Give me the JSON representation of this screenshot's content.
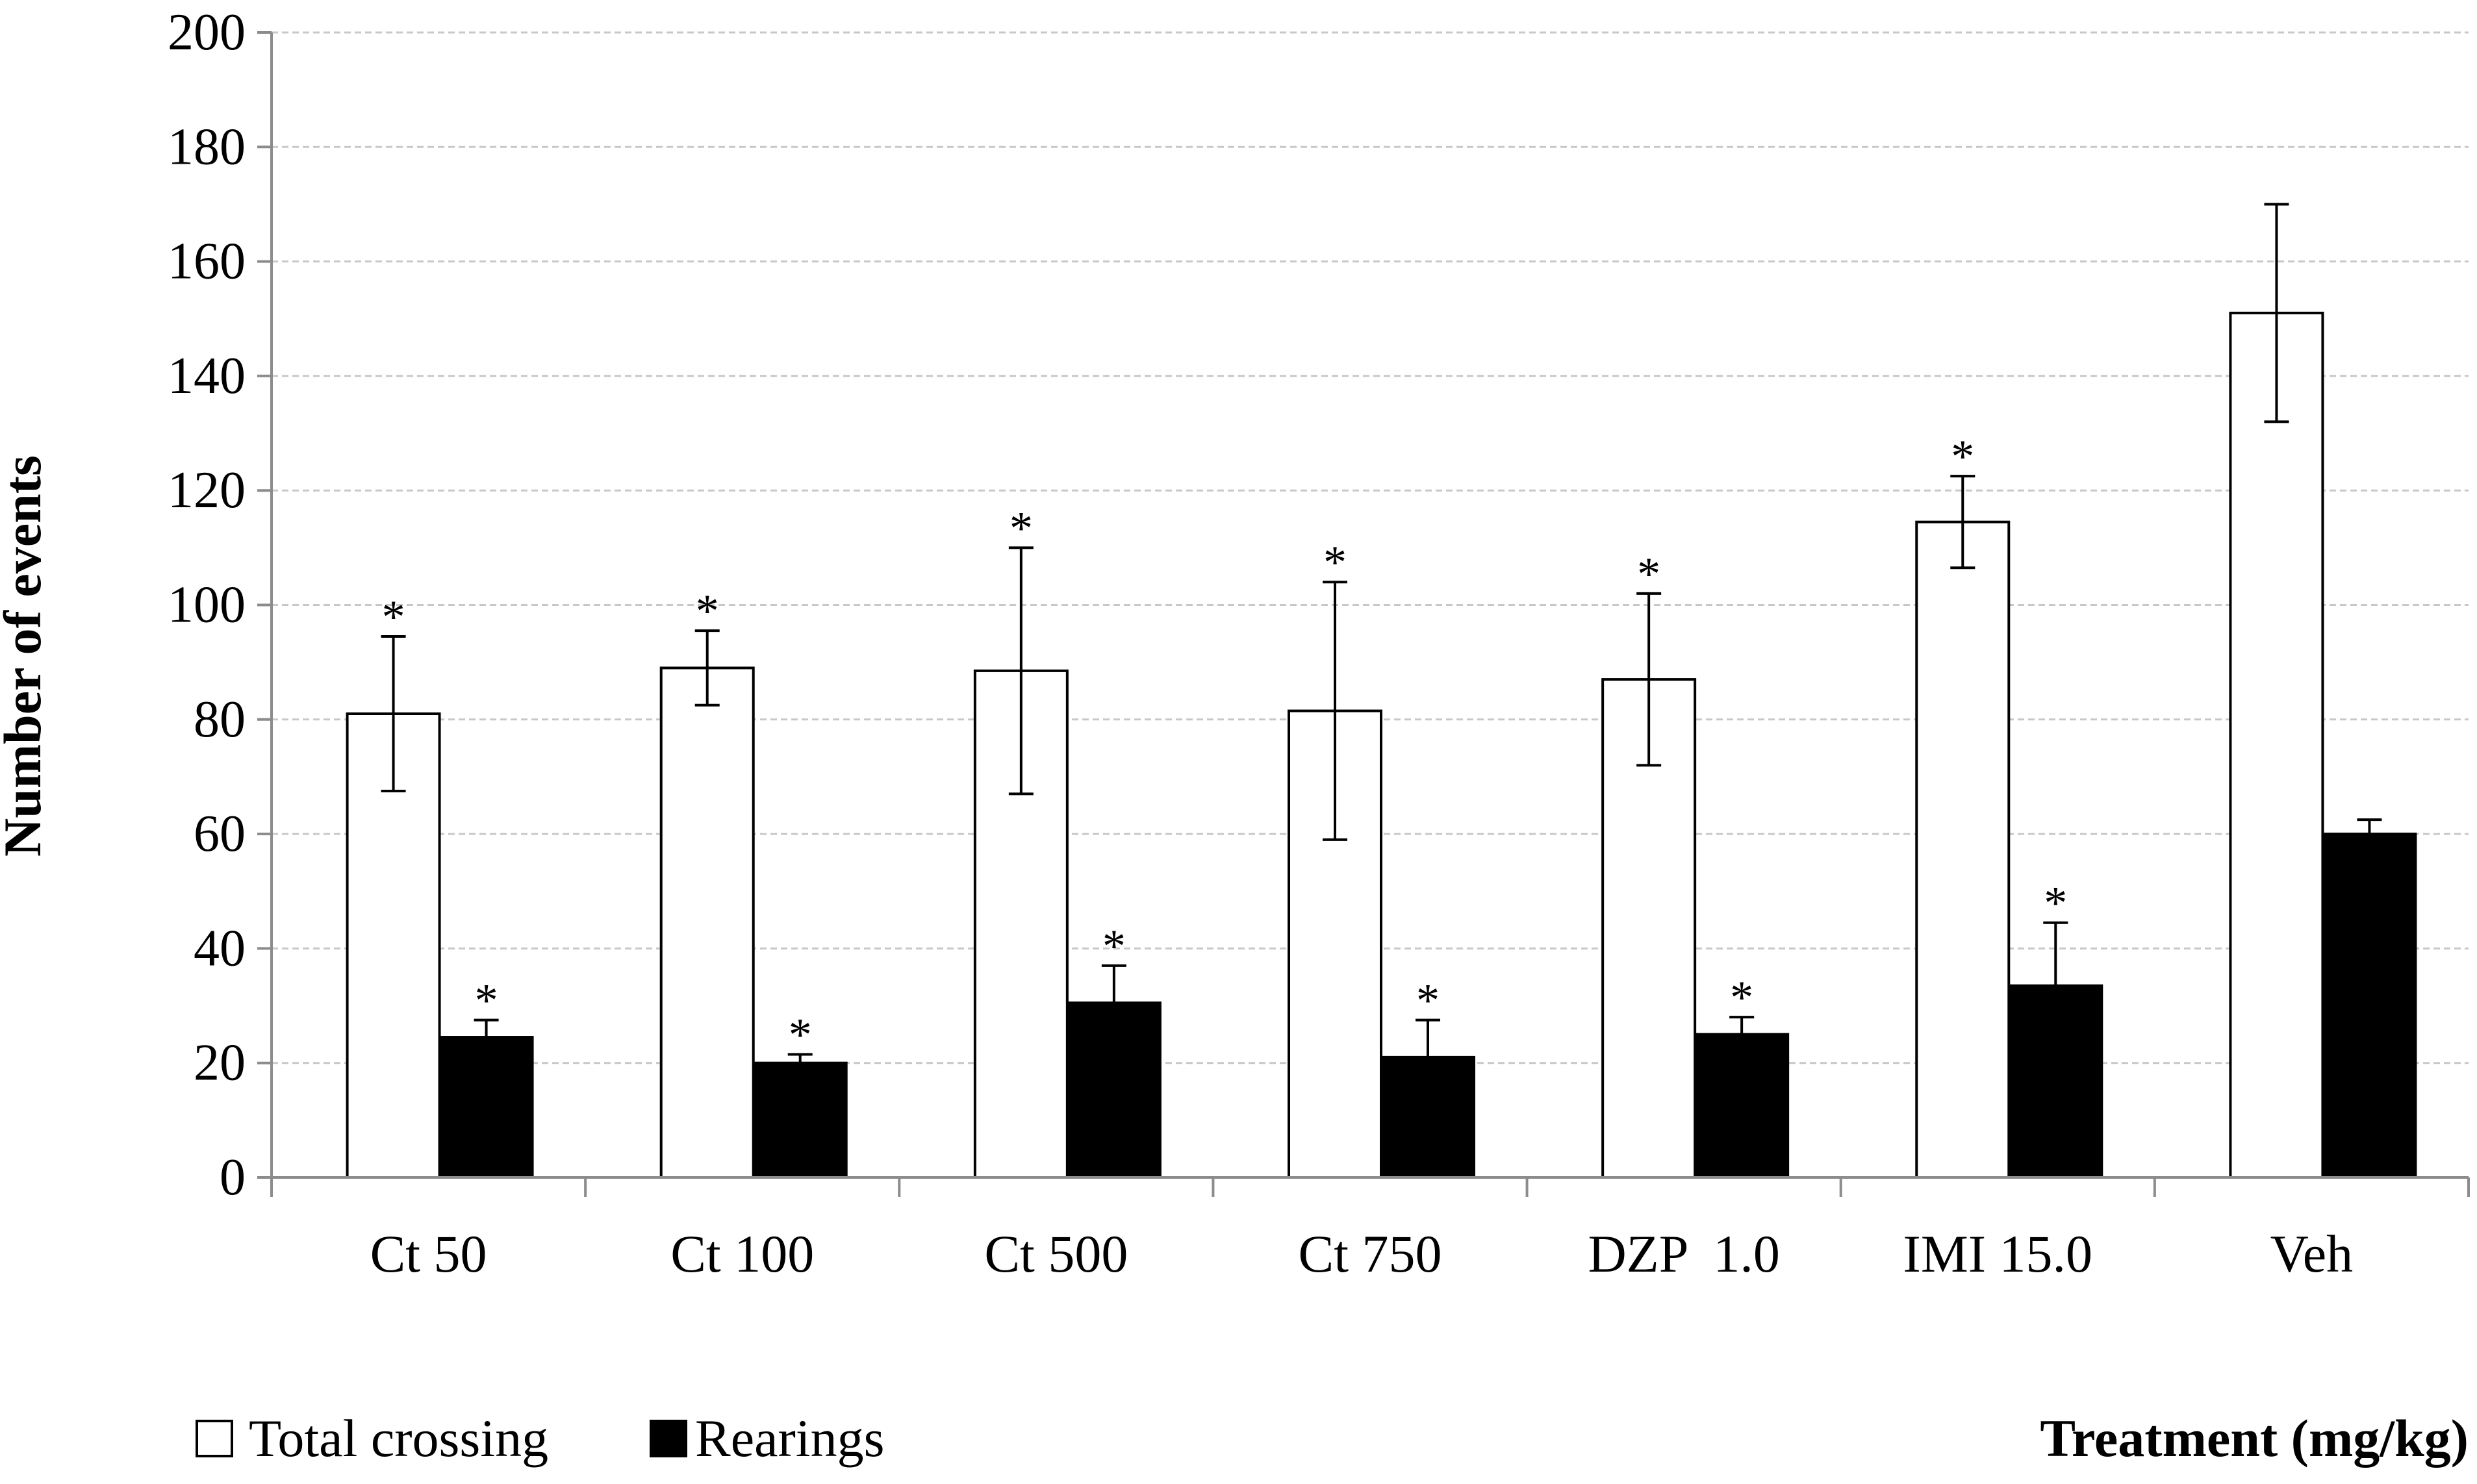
{
  "chart_data": {
    "type": "bar",
    "title": "",
    "xlabel": "Treatment (mg/kg)",
    "ylabel": "Number of events",
    "ylim": [
      0,
      200
    ],
    "yticks": [
      0,
      20,
      40,
      60,
      80,
      100,
      120,
      140,
      160,
      180,
      200
    ],
    "grid": true,
    "legend_position": "bottom-left",
    "categories": [
      "Ct 50",
      "Ct 100",
      "Ct 500",
      "Ct 750",
      "DZP  1.0",
      "IMI 15.0",
      "Veh"
    ],
    "series": [
      {
        "name": "Total crossing",
        "fill": "#ffffff",
        "values": [
          81,
          89,
          88.5,
          81.5,
          87,
          114.5,
          151
        ],
        "errors": [
          13.5,
          6.5,
          21.5,
          22.5,
          15,
          8,
          19
        ],
        "significant": [
          true,
          true,
          true,
          true,
          true,
          true,
          false
        ],
        "marker_label": "*"
      },
      {
        "name": "Rearings",
        "fill": "#000000",
        "values": [
          24.5,
          20,
          30.5,
          21,
          25,
          33.5,
          60
        ],
        "errors": [
          3,
          1.5,
          6.5,
          6.5,
          3,
          11,
          2.5
        ],
        "significant": [
          true,
          true,
          true,
          true,
          true,
          true,
          false
        ],
        "marker_label": "*"
      }
    ]
  },
  "colors": {
    "axis": "#8c8c8c",
    "grid": "#c8c8c8",
    "bar_outline": "#000000",
    "text": "#000000"
  }
}
